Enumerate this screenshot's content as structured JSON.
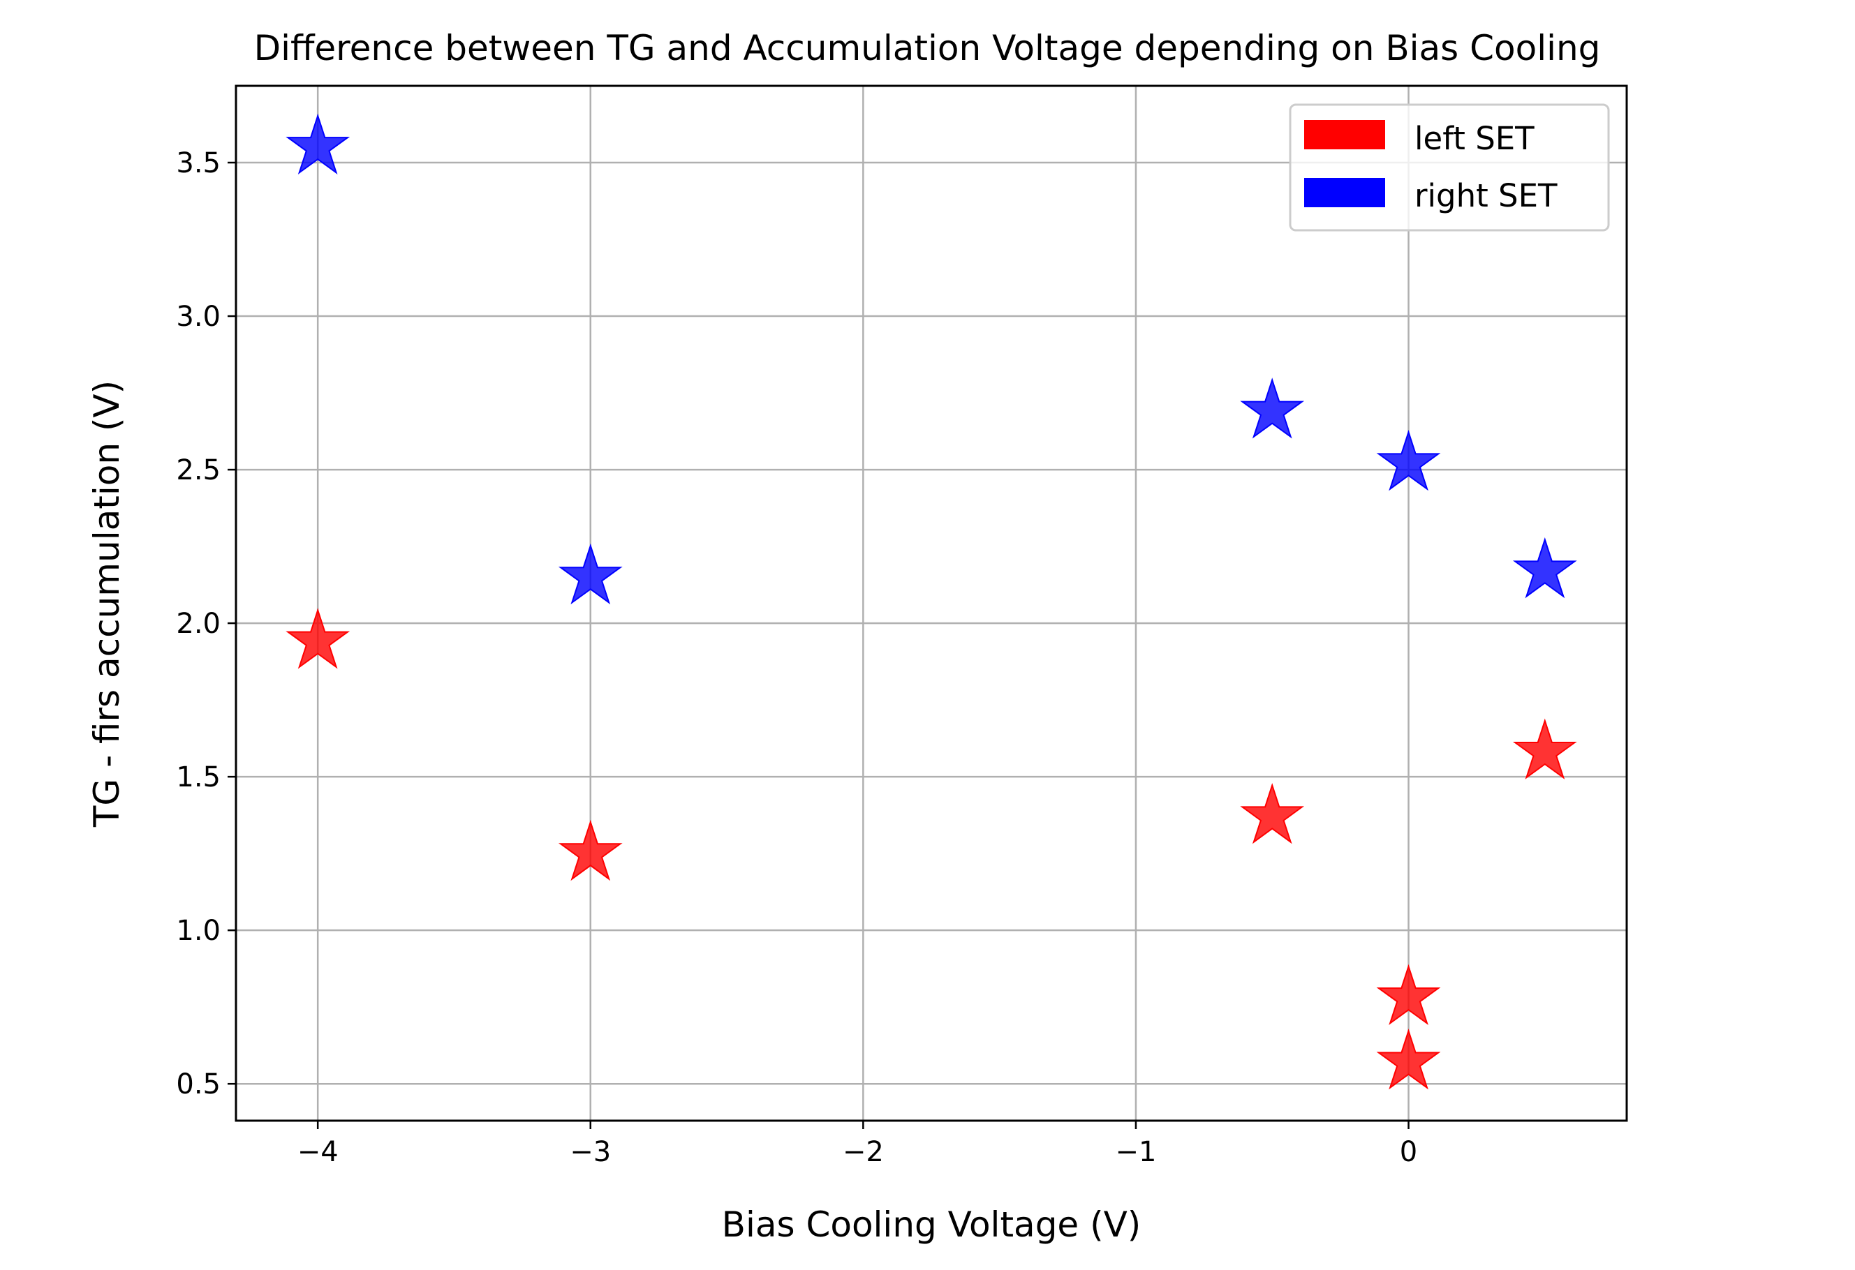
{
  "chart_data": {
    "type": "scatter",
    "title": "Difference between TG and Accumulation Voltage depending on Bias Cooling",
    "xlabel": "Bias Cooling Voltage (V)",
    "ylabel": "TG - firs accumulation (V)",
    "xlim": [
      -4.3,
      0.8
    ],
    "ylim": [
      0.38,
      3.75
    ],
    "xticks": [
      -4,
      -3,
      -2,
      -1,
      0
    ],
    "xtick_labels": [
      "−4",
      "−3",
      "−2",
      "−1",
      "0"
    ],
    "yticks": [
      0.5,
      1.0,
      1.5,
      2.0,
      2.5,
      3.0,
      3.5
    ],
    "ytick_labels": [
      "0.5",
      "1.0",
      "1.5",
      "2.0",
      "2.5",
      "3.0",
      "3.5"
    ],
    "grid": true,
    "marker": "star",
    "legend_position": "top-right",
    "series": [
      {
        "name": "left SET",
        "color": "#ff0000",
        "points": [
          {
            "x": -4,
            "y": 1.94
          },
          {
            "x": -3,
            "y": 1.25
          },
          {
            "x": -0.5,
            "y": 1.37
          },
          {
            "x": 0,
            "y": 0.78
          },
          {
            "x": 0,
            "y": 0.57
          },
          {
            "x": 0.5,
            "y": 1.58
          }
        ]
      },
      {
        "name": "right SET",
        "color": "#0000ff",
        "points": [
          {
            "x": -4,
            "y": 3.55
          },
          {
            "x": -3,
            "y": 2.15
          },
          {
            "x": -0.5,
            "y": 2.69
          },
          {
            "x": 0,
            "y": 2.52
          },
          {
            "x": 0.5,
            "y": 2.17
          }
        ]
      }
    ]
  }
}
